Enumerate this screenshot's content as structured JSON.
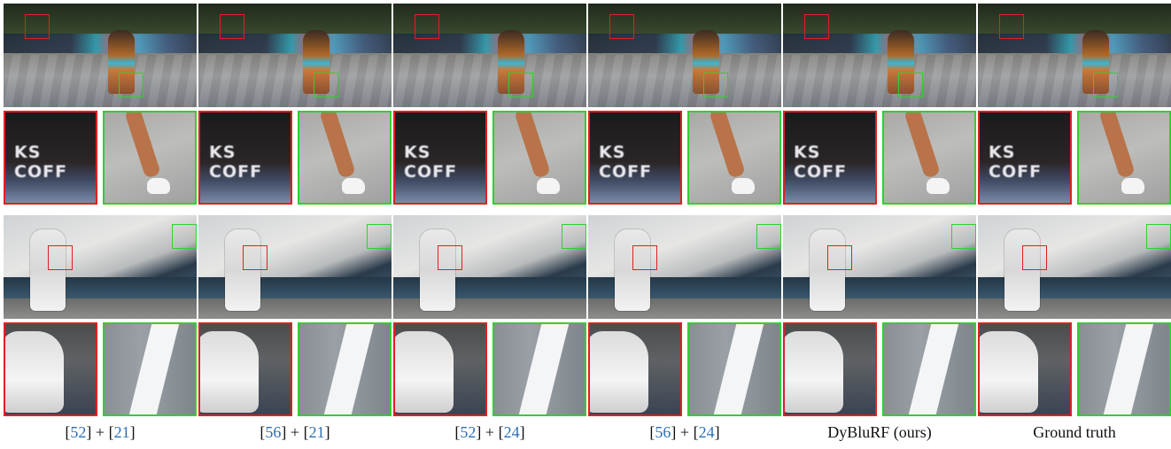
{
  "colors": {
    "ref_link": "#2c6eb5",
    "crop_red": "#e02020",
    "crop_green": "#30d030"
  },
  "rows": [
    {
      "scene": "street-walking",
      "crop_red_text": "KS COFF"
    },
    {
      "scene": "poolside-man-white-outfit"
    }
  ],
  "columns": [
    {
      "ref_a": "52",
      "ref_b": "21",
      "plus": "+"
    },
    {
      "ref_a": "56",
      "ref_b": "21",
      "plus": "+"
    },
    {
      "ref_a": "52",
      "ref_b": "24",
      "plus": "+"
    },
    {
      "ref_a": "56",
      "ref_b": "24",
      "plus": "+"
    },
    {
      "method": "DyBluRF (ours)"
    },
    {
      "method": "Ground truth"
    }
  ]
}
